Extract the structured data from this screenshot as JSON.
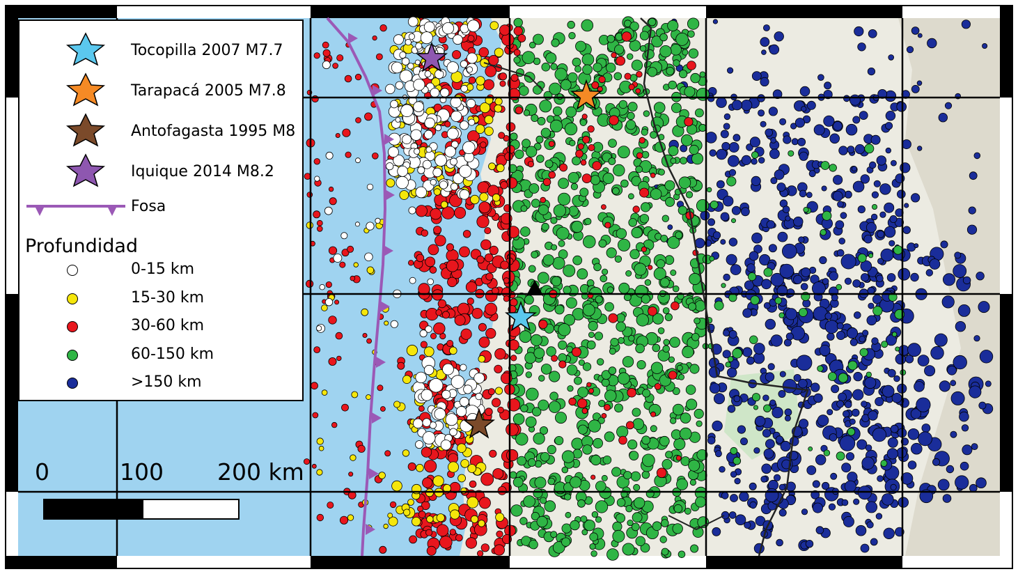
{
  "map": {
    "colors": {
      "ocean": "#9fd3f0",
      "land": "#ecebe2",
      "trench": "#9b59b6",
      "grid": "#000000",
      "depth_0_15": "#ffffff",
      "depth_15_30": "#f5e60b",
      "depth_30_60": "#e8161d",
      "depth_60_150": "#2fb545",
      "depth_gt_150": "#1a2d9a"
    }
  },
  "legend": {
    "events": [
      {
        "label": "Tocopilla 2007 M7.7",
        "color": "#5bc8ee",
        "icon": "star-icon"
      },
      {
        "label": "Tarapacá 2005 M7.8",
        "color": "#f58a25",
        "icon": "star-icon"
      },
      {
        "label": "Antofagasta 1995 M8",
        "color": "#7b4a2a",
        "icon": "star-icon"
      },
      {
        "label": "Iquique 2014 M8.2",
        "color": "#8e57b0",
        "icon": "star-icon"
      }
    ],
    "trench_label": "Fosa",
    "depth_title": "Profundidad",
    "depths": [
      {
        "label": "0-15 km",
        "color": "#ffffff"
      },
      {
        "label": "15-30 km",
        "color": "#f5e60b"
      },
      {
        "label": "30-60 km",
        "color": "#e8161d"
      },
      {
        "label": "60-150 km",
        "color": "#2fb545"
      },
      {
        "label": ">150 km",
        "color": "#1a2d9a"
      }
    ]
  },
  "scale": {
    "labels": [
      "0",
      "100",
      "200 km"
    ]
  }
}
